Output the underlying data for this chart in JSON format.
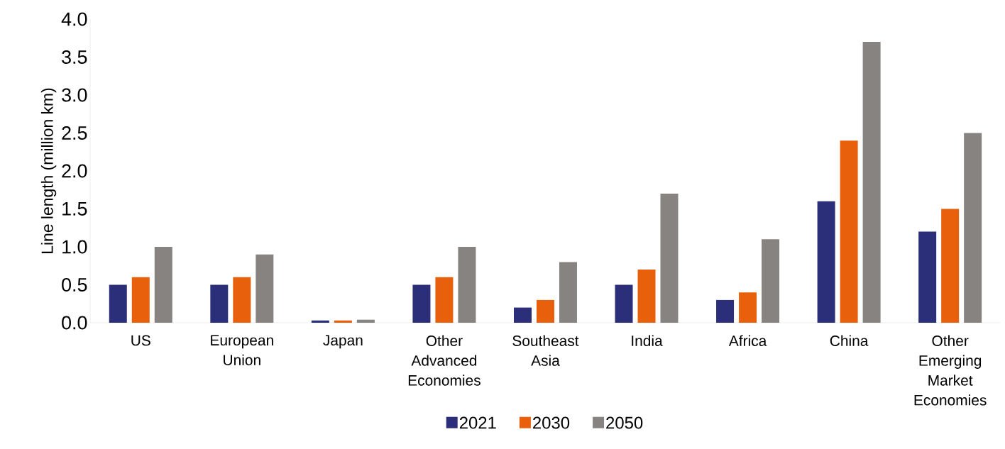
{
  "chart_data": {
    "type": "bar",
    "ylabel": "Line length (million km)",
    "categories": [
      "US",
      "European Union",
      "Japan",
      "Other Advanced Economies",
      "Southeast Asia",
      "India",
      "Africa",
      "China",
      "Other Emerging Market Economies"
    ],
    "series": [
      {
        "name": "2021",
        "color": "#2b2f7a",
        "values": [
          0.5,
          0.5,
          0.03,
          0.5,
          0.2,
          0.5,
          0.3,
          1.6,
          1.2
        ]
      },
      {
        "name": "2030",
        "color": "#e8600c",
        "values": [
          0.6,
          0.6,
          0.03,
          0.6,
          0.3,
          0.7,
          0.4,
          2.4,
          1.5
        ]
      },
      {
        "name": "2050",
        "color": "#878381",
        "values": [
          1.0,
          0.9,
          0.04,
          1.0,
          0.8,
          1.7,
          1.1,
          3.7,
          2.5
        ]
      }
    ],
    "ylim": [
      0,
      4
    ],
    "yticks": [
      {
        "value": 0,
        "label": "0.0"
      },
      {
        "value": 0.5,
        "label": "0.5"
      },
      {
        "value": 1,
        "label": "1.0"
      },
      {
        "value": 1.5,
        "label": "1.5"
      },
      {
        "value": 2,
        "label": "2.0"
      },
      {
        "value": 2.5,
        "label": "2.5"
      },
      {
        "value": 3,
        "label": "3.0"
      },
      {
        "value": 3.5,
        "label": "3.5"
      },
      {
        "value": 4,
        "label": "4.0"
      }
    ],
    "legend": "bottom"
  }
}
